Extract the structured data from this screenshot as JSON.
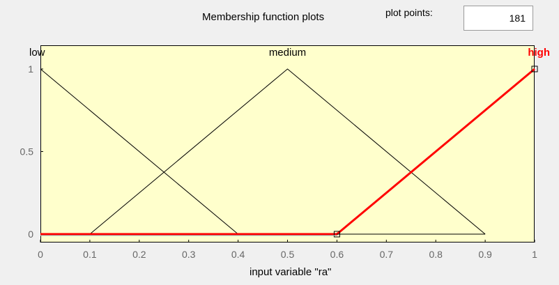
{
  "header": {
    "title": "Membership function plots",
    "plot_points_label": "plot points:",
    "plot_points_value": "181"
  },
  "chart_data": {
    "type": "line",
    "xlabel": "input variable \"ra\"",
    "ylabel": "",
    "xlim": [
      0,
      1
    ],
    "ylim": [
      0,
      1
    ],
    "x_ticks": [
      "0",
      "0.1",
      "0.2",
      "0.3",
      "0.4",
      "0.5",
      "0.6",
      "0.7",
      "0.8",
      "0.9",
      "1"
    ],
    "y_ticks": [
      "0",
      "0.5",
      "1"
    ],
    "grid": false,
    "background": "#ffffcc",
    "selected_color": "#ff0000",
    "series": [
      {
        "name": "low",
        "x": [
          0,
          0.4
        ],
        "y": [
          1,
          0
        ],
        "selected": false
      },
      {
        "name": "medium",
        "x": [
          0.1,
          0.5,
          0.9
        ],
        "y": [
          0,
          1,
          0
        ],
        "selected": false
      },
      {
        "name": "high",
        "x": [
          0.6,
          1
        ],
        "y": [
          0,
          1
        ],
        "selected": true
      }
    ]
  }
}
